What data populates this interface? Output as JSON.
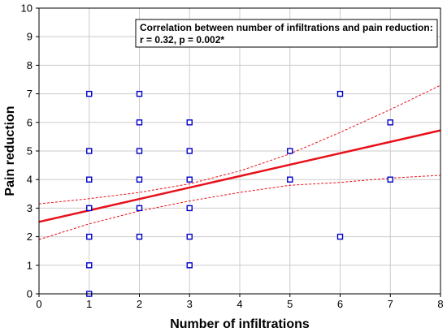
{
  "chart_data": {
    "type": "scatter",
    "title": "",
    "xlabel": "Number of infiltrations",
    "ylabel": "Pain reduction",
    "xlim": [
      0,
      8
    ],
    "ylim": [
      0,
      10
    ],
    "x_ticks": [
      "0",
      "1",
      "2",
      "3",
      "4",
      "5",
      "6",
      "7",
      "8"
    ],
    "y_ticks": [
      "0",
      "1",
      "2",
      "3",
      "4",
      "5",
      "6",
      "7",
      "8",
      "9",
      "10"
    ],
    "grid": true,
    "series": [
      {
        "points": [
          [
            1,
            7
          ],
          [
            1,
            5
          ],
          [
            1,
            4
          ],
          [
            1,
            3
          ],
          [
            1,
            2
          ],
          [
            1,
            1
          ],
          [
            1,
            0
          ],
          [
            2,
            7
          ],
          [
            2,
            6
          ],
          [
            2,
            5
          ],
          [
            2,
            4
          ],
          [
            2,
            3
          ],
          [
            2,
            2
          ],
          [
            3,
            6
          ],
          [
            3,
            5
          ],
          [
            3,
            4
          ],
          [
            3,
            3
          ],
          [
            3,
            2
          ],
          [
            3,
            1
          ],
          [
            5,
            5
          ],
          [
            5,
            4
          ],
          [
            6,
            7
          ],
          [
            6,
            2
          ],
          [
            7,
            6
          ],
          [
            7,
            4
          ]
        ]
      }
    ],
    "regression_line": {
      "x": [
        0,
        8
      ],
      "y": [
        2.52,
        5.72
      ]
    },
    "confidence_upper": {
      "x": [
        0,
        1,
        2,
        3,
        4,
        5,
        6,
        7,
        8
      ],
      "y": [
        3.15,
        3.33,
        3.55,
        3.85,
        4.3,
        4.9,
        5.65,
        6.45,
        7.3
      ]
    },
    "confidence_lower": {
      "x": [
        0,
        1,
        2,
        3,
        4,
        5,
        6,
        7,
        8
      ],
      "y": [
        1.9,
        2.45,
        2.9,
        3.25,
        3.55,
        3.8,
        3.9,
        4.05,
        4.15
      ]
    },
    "annotation": {
      "line1": "Correlation between number of infiltrations and pain reduction:",
      "line2": "r = 0.32, p = 0.002*"
    },
    "colors": {
      "points": "#0000cc",
      "regression": "#e8101a",
      "confidence": "#e8101a",
      "grid": "#cccccc",
      "axes": "#000000"
    }
  }
}
